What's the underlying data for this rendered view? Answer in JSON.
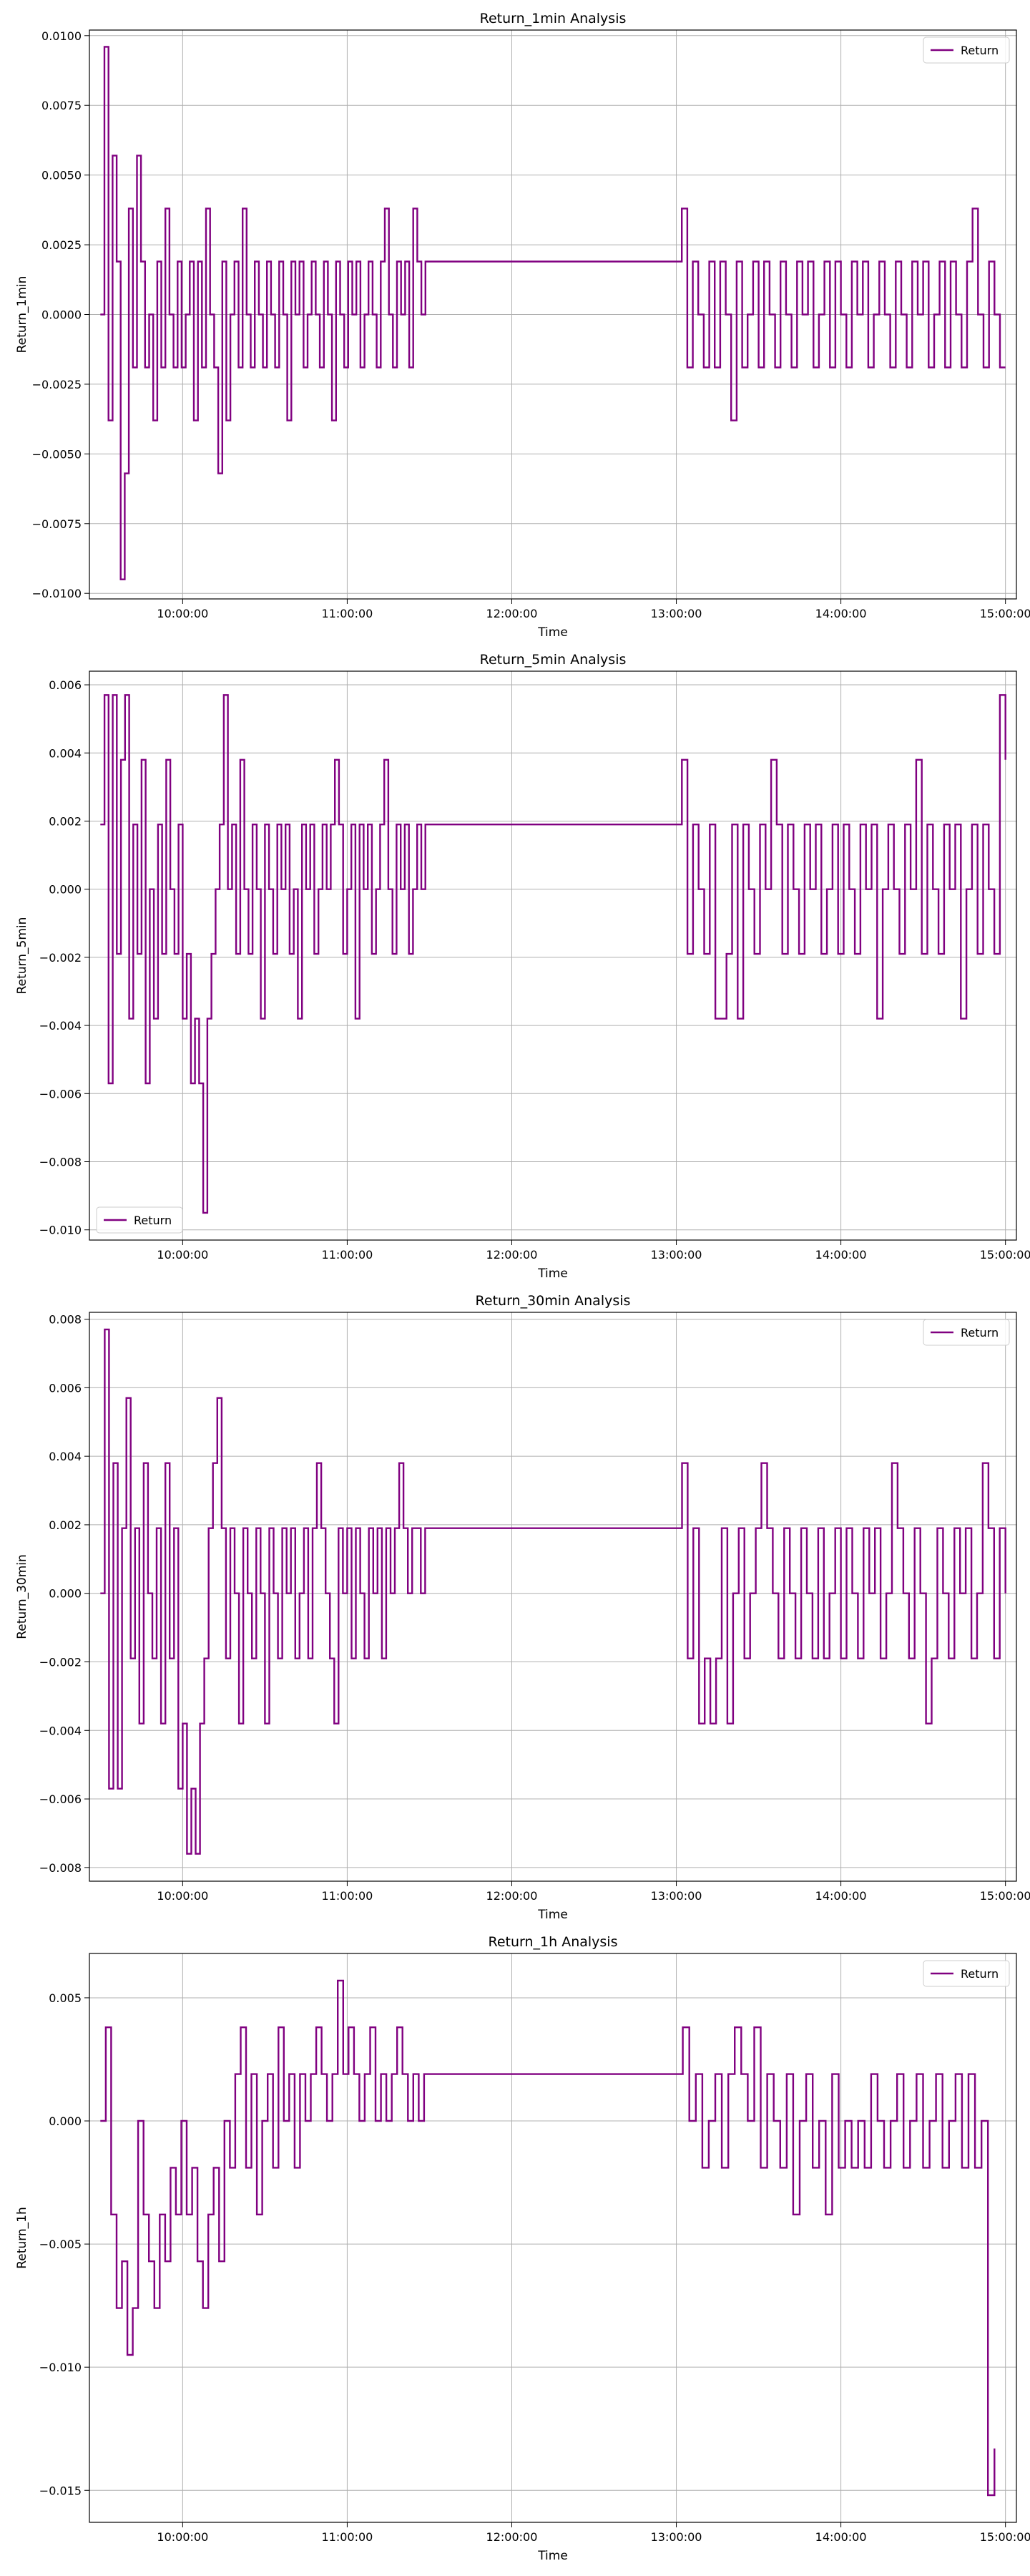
{
  "chart_data": [
    {
      "type": "line",
      "title": "Return_1min Analysis",
      "xlabel": "Time",
      "ylabel": "Return_1min",
      "x_range": [
        "09:30:00",
        "15:00:00"
      ],
      "xlim": [
        "09:26:00",
        "15:04:00"
      ],
      "xticks": [
        "10:00:00",
        "11:00:00",
        "12:00:00",
        "13:00:00",
        "14:00:00",
        "15:00:00"
      ],
      "ylim": [
        -0.0102,
        0.0102
      ],
      "yticks": [
        "−0.0100",
        "−0.0075",
        "−0.0050",
        "−0.0025",
        "0.0000",
        "0.0025",
        "0.0050",
        "0.0075",
        "0.0100"
      ],
      "grid": true,
      "legend_position": "upper right",
      "series": [
        {
          "name": "Return",
          "color": "#800080",
          "flat_segment": {
            "from": "11:30:00",
            "to": "13:00:00",
            "value": 0.0019
          },
          "morning": [
            0.0,
            0.0096,
            -0.0038,
            0.0057,
            0.0019,
            -0.0095,
            -0.0057,
            0.0038,
            -0.0019,
            0.0057,
            0.0019,
            -0.0019,
            0.0,
            -0.0038,
            0.0019,
            -0.0019,
            0.0038,
            0.0,
            -0.0019,
            0.0019,
            -0.0019,
            0.0,
            0.0019,
            -0.0038,
            0.0019,
            -0.0019,
            0.0038,
            0.0,
            -0.0019,
            -0.0057,
            0.0019,
            -0.0038,
            0.0,
            0.0019,
            -0.0019,
            0.0038,
            0.0,
            -0.0019,
            0.0019,
            0.0,
            -0.0019,
            0.0019,
            0.0,
            -0.0019,
            0.0019,
            0.0,
            -0.0038,
            0.0019,
            0.0,
            0.0019,
            -0.0019,
            0.0,
            0.0019,
            0.0,
            -0.0019,
            0.0019,
            0.0,
            -0.0038,
            0.0019,
            0.0,
            -0.0019,
            0.0019,
            0.0,
            0.0019,
            -0.0019,
            0.0,
            0.0019,
            0.0,
            -0.0019,
            0.0019,
            0.0038,
            0.0,
            -0.0019,
            0.0019,
            0.0,
            0.0019,
            -0.0019,
            0.0038,
            0.0019,
            0.0,
            0.0019,
            0.0019
          ],
          "afternoon": [
            0.0038,
            -0.0019,
            0.0019,
            0.0,
            -0.0019,
            0.0019,
            -0.0019,
            0.0019,
            0.0,
            -0.0038,
            0.0019,
            -0.0019,
            0.0,
            0.0019,
            -0.0019,
            0.0019,
            0.0,
            -0.0019,
            0.0019,
            0.0,
            -0.0019,
            0.0019,
            0.0,
            0.0019,
            -0.0019,
            0.0,
            0.0019,
            -0.0019,
            0.0019,
            0.0,
            -0.0019,
            0.0019,
            0.0,
            0.0019,
            -0.0019,
            0.0,
            0.0019,
            0.0,
            -0.0019,
            0.0019,
            0.0,
            -0.0019,
            0.0019,
            0.0,
            0.0019,
            -0.0019,
            0.0,
            0.0019,
            -0.0019,
            0.0019,
            0.0,
            -0.0019,
            0.0019,
            0.0038,
            0.0,
            -0.0019,
            0.0019,
            0.0,
            -0.0019,
            -0.0019
          ]
        }
      ]
    },
    {
      "type": "line",
      "title": "Return_5min Analysis",
      "xlabel": "Time",
      "ylabel": "Return_5min",
      "x_range": [
        "09:30:00",
        "15:00:00"
      ],
      "xlim": [
        "09:26:00",
        "15:04:00"
      ],
      "xticks": [
        "10:00:00",
        "11:00:00",
        "12:00:00",
        "13:00:00",
        "14:00:00",
        "15:00:00"
      ],
      "ylim": [
        -0.0103,
        0.0064
      ],
      "yticks": [
        "−0.010",
        "−0.008",
        "−0.006",
        "−0.004",
        "−0.002",
        "0.000",
        "0.002",
        "0.004",
        "0.006"
      ],
      "grid": true,
      "legend_position": "lower left",
      "series": [
        {
          "name": "Return",
          "color": "#800080",
          "flat_segment": {
            "from": "11:30:00",
            "to": "13:00:00",
            "value": 0.0019
          },
          "morning": [
            0.0019,
            0.0057,
            -0.0057,
            0.0057,
            -0.0019,
            0.0038,
            0.0057,
            -0.0038,
            0.0019,
            -0.0019,
            0.0038,
            -0.0057,
            0.0,
            -0.0038,
            0.0019,
            -0.0019,
            0.0038,
            0.0,
            -0.0019,
            0.0019,
            -0.0038,
            -0.0019,
            -0.0057,
            -0.0038,
            -0.0057,
            -0.0095,
            -0.0038,
            -0.0019,
            0.0,
            0.0019,
            0.0057,
            0.0,
            0.0019,
            -0.0019,
            0.0038,
            0.0,
            -0.0019,
            0.0019,
            0.0,
            -0.0038,
            0.0019,
            0.0,
            -0.0019,
            0.0019,
            0.0,
            0.0019,
            -0.0019,
            0.0,
            -0.0038,
            0.0019,
            0.0,
            0.0019,
            -0.0019,
            0.0,
            0.0019,
            0.0,
            0.0019,
            0.0038,
            0.0019,
            -0.0019,
            0.0,
            0.0019,
            -0.0038,
            0.0019,
            0.0,
            0.0019,
            -0.0019,
            0.0,
            0.0019,
            0.0038,
            0.0,
            -0.0019,
            0.0019,
            0.0,
            0.0019,
            -0.0019,
            0.0,
            0.0019,
            0.0,
            0.0019,
            0.0019
          ],
          "afternoon": [
            0.0038,
            -0.0019,
            0.0019,
            0.0,
            -0.0019,
            0.0019,
            -0.0038,
            -0.0038,
            -0.0019,
            0.0019,
            -0.0038,
            0.0019,
            0.0,
            -0.0019,
            0.0019,
            0.0,
            0.0038,
            0.0019,
            -0.0019,
            0.0019,
            0.0,
            -0.0019,
            0.0019,
            0.0,
            0.0019,
            -0.0019,
            0.0,
            0.0019,
            -0.0019,
            0.0019,
            0.0,
            -0.0019,
            0.0019,
            0.0,
            0.0019,
            -0.0038,
            0.0,
            0.0019,
            0.0,
            -0.0019,
            0.0019,
            0.0,
            0.0038,
            -0.0019,
            0.0019,
            0.0,
            -0.0019,
            0.0019,
            0.0,
            0.0019,
            -0.0038,
            0.0,
            0.0019,
            -0.0019,
            0.0019,
            0.0,
            -0.0019,
            0.0057,
            0.0038
          ]
        }
      ]
    },
    {
      "type": "line",
      "title": "Return_30min Analysis",
      "xlabel": "Time",
      "ylabel": "Return_30min",
      "x_range": [
        "09:30:00",
        "15:00:00"
      ],
      "xlim": [
        "09:26:00",
        "15:04:00"
      ],
      "xticks": [
        "10:00:00",
        "11:00:00",
        "12:00:00",
        "13:00:00",
        "14:00:00",
        "15:00:00"
      ],
      "ylim": [
        -0.0084,
        0.0082
      ],
      "yticks": [
        "−0.008",
        "−0.006",
        "−0.004",
        "−0.002",
        "0.000",
        "0.002",
        "0.004",
        "0.006",
        "0.008"
      ],
      "grid": true,
      "legend_position": "upper right",
      "series": [
        {
          "name": "Return",
          "color": "#800080",
          "flat_segment": {
            "from": "11:30:00",
            "to": "13:00:00",
            "value": 0.0019
          },
          "morning": [
            0.0,
            0.0077,
            -0.0057,
            0.0038,
            -0.0057,
            0.0019,
            0.0057,
            -0.0019,
            0.0019,
            -0.0038,
            0.0038,
            0.0,
            -0.0019,
            0.0019,
            -0.0038,
            0.0038,
            -0.0019,
            0.0019,
            -0.0057,
            -0.0038,
            -0.0076,
            -0.0057,
            -0.0076,
            -0.0038,
            -0.0019,
            0.0019,
            0.0038,
            0.0057,
            0.0019,
            -0.0019,
            0.0019,
            0.0,
            -0.0038,
            0.0019,
            0.0,
            -0.0019,
            0.0019,
            0.0,
            -0.0038,
            0.0019,
            0.0,
            -0.0019,
            0.0019,
            0.0,
            0.0019,
            -0.0019,
            0.0,
            0.0019,
            -0.0019,
            0.0019,
            0.0038,
            0.0019,
            0.0,
            -0.0019,
            -0.0038,
            0.0019,
            0.0,
            0.0019,
            -0.0019,
            0.0019,
            0.0,
            -0.0019,
            0.0019,
            0.0,
            0.0019,
            -0.0019,
            0.0019,
            0.0,
            0.0019,
            0.0038,
            0.0019,
            0.0,
            0.0019,
            0.0019,
            0.0,
            0.0019,
            0.0019
          ],
          "afternoon": [
            0.0038,
            -0.0019,
            0.0019,
            -0.0038,
            -0.0019,
            -0.0038,
            -0.0019,
            0.0019,
            -0.0038,
            0.0,
            0.0019,
            -0.0019,
            0.0,
            0.0019,
            0.0038,
            0.0019,
            0.0,
            -0.0019,
            0.0019,
            0.0,
            -0.0019,
            0.0019,
            0.0,
            -0.0019,
            0.0019,
            -0.0019,
            0.0,
            0.0019,
            -0.0019,
            0.0019,
            0.0,
            -0.0019,
            0.0019,
            0.0,
            0.0019,
            -0.0019,
            0.0,
            0.0038,
            0.0019,
            0.0,
            -0.0019,
            0.0019,
            0.0,
            -0.0038,
            -0.0019,
            0.0019,
            0.0,
            -0.0019,
            0.0019,
            0.0,
            0.0019,
            -0.0019,
            0.0,
            0.0038,
            0.0019,
            -0.0019,
            0.0019,
            0.0
          ]
        }
      ]
    },
    {
      "type": "line",
      "title": "Return_1h Analysis",
      "xlabel": "Time",
      "ylabel": "Return_1h",
      "x_range": [
        "09:30:00",
        "14:56:00"
      ],
      "xlim": [
        "09:26:00",
        "15:04:00"
      ],
      "xticks": [
        "10:00:00",
        "11:00:00",
        "12:00:00",
        "13:00:00",
        "14:00:00",
        "15:00:00"
      ],
      "ylim": [
        -0.0163,
        0.0068
      ],
      "yticks": [
        "−0.015",
        "−0.010",
        "−0.005",
        "0.000",
        "0.005"
      ],
      "grid": true,
      "legend_position": "upper right",
      "series": [
        {
          "name": "Return",
          "color": "#800080",
          "flat_segment": {
            "from": "11:30:00",
            "to": "13:00:00",
            "value": 0.0019
          },
          "morning": [
            0.0,
            0.0038,
            -0.0038,
            -0.0076,
            -0.0057,
            -0.0095,
            -0.0076,
            0.0,
            -0.0038,
            -0.0057,
            -0.0076,
            -0.0038,
            -0.0057,
            -0.0019,
            -0.0038,
            0.0,
            -0.0038,
            -0.0019,
            -0.0057,
            -0.0076,
            -0.0038,
            -0.0019,
            -0.0057,
            0.0,
            -0.0019,
            0.0019,
            0.0038,
            -0.0019,
            0.0019,
            -0.0038,
            0.0,
            0.0019,
            -0.0019,
            0.0038,
            0.0,
            0.0019,
            -0.0019,
            0.0019,
            0.0,
            0.0019,
            0.0038,
            0.0019,
            0.0,
            0.0019,
            0.0057,
            0.0019,
            0.0038,
            0.0019,
            0.0,
            0.0019,
            0.0038,
            0.0,
            0.0019,
            0.0,
            0.0019,
            0.0038,
            0.0019,
            0.0,
            0.0019,
            0.0,
            0.0019,
            0.0019
          ],
          "afternoon": [
            0.0038,
            0.0,
            0.0019,
            -0.0019,
            0.0,
            0.0019,
            -0.0019,
            0.0019,
            0.0038,
            0.0019,
            0.0,
            0.0038,
            -0.0019,
            0.0019,
            0.0,
            -0.0019,
            0.0019,
            -0.0038,
            0.0,
            0.0019,
            -0.0019,
            0.0,
            -0.0038,
            0.0019,
            -0.0019,
            0.0,
            -0.0019,
            0.0,
            -0.0019,
            0.0019,
            0.0,
            -0.0019,
            0.0,
            0.0019,
            -0.0019,
            0.0,
            0.0019,
            -0.0019,
            0.0,
            0.0019,
            -0.0019,
            0.0,
            0.0019,
            -0.0019,
            0.0019,
            -0.0019,
            0.0,
            -0.0152,
            -0.0133
          ]
        }
      ]
    }
  ]
}
